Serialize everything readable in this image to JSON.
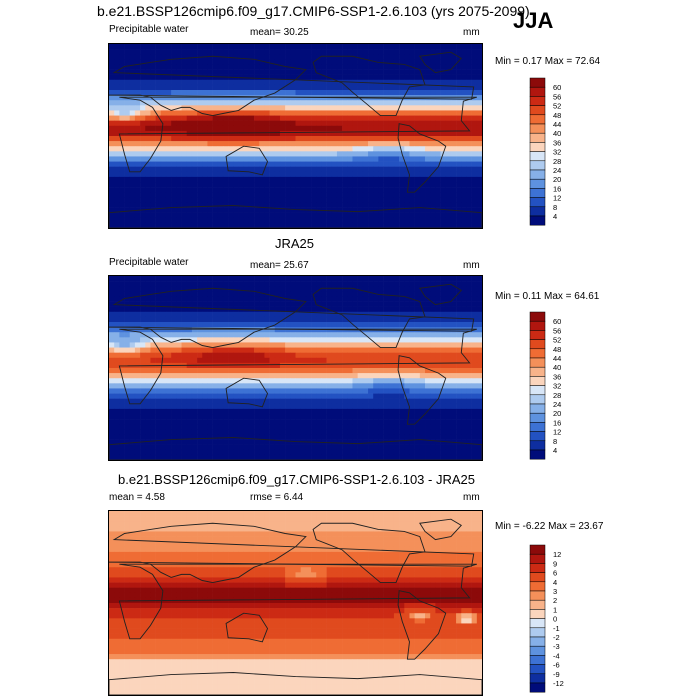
{
  "header": {
    "title": "b.e21.BSSP126cmip6.f09_g17.CMIP6-SSP1-2.6.103 (yrs 2075-2099)",
    "season": "JJA"
  },
  "panels": [
    {
      "title": "",
      "left_label": "Precipitable water",
      "center_label": "mean=  30.25",
      "units": "mm",
      "minmax": "Min =   0.17 Max =  72.64"
    },
    {
      "title": "JRA25",
      "left_label": "Precipitable water",
      "center_label": "mean=  25.67",
      "units": "mm",
      "minmax": "Min =   0.11 Max =  64.61"
    },
    {
      "title": "b.e21.BSSP126cmip6.f09_g17.CMIP6-SSP1-2.6.103 - JRA25",
      "left_label": "mean =   4.58",
      "center_label": "rmse =   6.44",
      "units": "mm",
      "minmax": "Min =  -6.22 Max =  23.67"
    }
  ],
  "chart_data": [
    {
      "type": "heatmap",
      "title": "b.e21.BSSP126cmip6.f09_g17.CMIP6-SSP1-2.6.103 (yrs 2075-2099)",
      "variable": "Precipitable water",
      "units": "mm",
      "mean": 30.25,
      "min": 0.17,
      "max": 72.64,
      "colorbar_levels": [
        "60",
        "56",
        "52",
        "48",
        "44",
        "40",
        "36",
        "32",
        "28",
        "24",
        "20",
        "16",
        "12",
        "8",
        "4"
      ],
      "colors": [
        "#8c0a0a",
        "#b0160f",
        "#cc2a14",
        "#e04a1e",
        "#ef6c34",
        "#f4905a",
        "#f8b38a",
        "#fbd5bd",
        "#d8e6f7",
        "#aecbef",
        "#86b0e8",
        "#5e92df",
        "#3d72d4",
        "#2352c2",
        "#0e2ea0",
        "#000c7a"
      ]
    },
    {
      "type": "heatmap",
      "title": "JRA25",
      "variable": "Precipitable water",
      "units": "mm",
      "mean": 25.67,
      "min": 0.11,
      "max": 64.61,
      "colorbar_levels": [
        "60",
        "56",
        "52",
        "48",
        "44",
        "40",
        "36",
        "32",
        "28",
        "24",
        "20",
        "16",
        "12",
        "8",
        "4"
      ],
      "colors": [
        "#8c0a0a",
        "#b0160f",
        "#cc2a14",
        "#e04a1e",
        "#ef6c34",
        "#f4905a",
        "#f8b38a",
        "#fbd5bd",
        "#d8e6f7",
        "#aecbef",
        "#86b0e8",
        "#5e92df",
        "#3d72d4",
        "#2352c2",
        "#0e2ea0",
        "#000c7a"
      ]
    },
    {
      "type": "heatmap",
      "title": "b.e21.BSSP126cmip6.f09_g17.CMIP6-SSP1-2.6.103 - JRA25",
      "units": "mm",
      "mean": 4.58,
      "rmse": 6.44,
      "min": -6.22,
      "max": 23.67,
      "colorbar_levels": [
        "12",
        "9",
        "6",
        "4",
        "3",
        "2",
        "1",
        "0",
        "-1",
        "-2",
        "-3",
        "-4",
        "-6",
        "-9",
        "-12"
      ],
      "colors": [
        "#8c0a0a",
        "#b0160f",
        "#cc2a14",
        "#e04a1e",
        "#ef6c34",
        "#f4905a",
        "#f8b38a",
        "#fbd5bd",
        "#d8e6f7",
        "#aecbef",
        "#86b0e8",
        "#5e92df",
        "#3d72d4",
        "#2352c2",
        "#0e2ea0",
        "#000c7a"
      ]
    }
  ]
}
